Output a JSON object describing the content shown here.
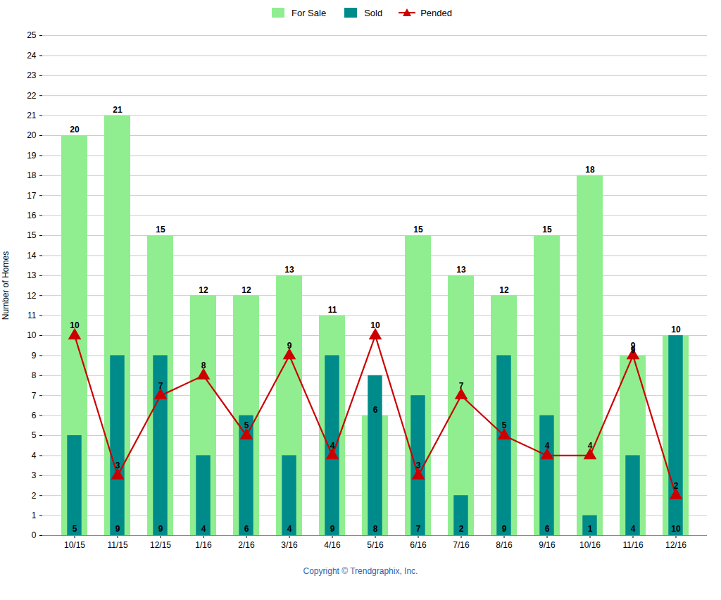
{
  "chart_data": {
    "type": "bar",
    "categories": [
      "10/15",
      "11/15",
      "12/15",
      "1/16",
      "2/16",
      "3/16",
      "4/16",
      "5/16",
      "6/16",
      "7/16",
      "8/16",
      "9/16",
      "10/16",
      "11/16",
      "12/16"
    ],
    "series": [
      {
        "name": "For Sale",
        "color": "#90EE90",
        "values": [
          20,
          21,
          15,
          12,
          12,
          13,
          11,
          6,
          15,
          13,
          12,
          15,
          18,
          9,
          10
        ]
      },
      {
        "name": "Sold",
        "color": "#008B8B",
        "values": [
          5,
          9,
          9,
          4,
          6,
          4,
          9,
          8,
          7,
          2,
          9,
          6,
          1,
          4,
          10
        ]
      },
      {
        "name": "Pended",
        "type": "line",
        "marker": "triangle",
        "color": "#CC0000",
        "values": [
          10,
          3,
          7,
          8,
          5,
          9,
          4,
          10,
          3,
          7,
          5,
          4,
          4,
          9,
          2
        ]
      }
    ],
    "ylabel": "Number of Homes",
    "caption": "Copyright © Trendgraphix, Inc.",
    "ylim": [
      0,
      25
    ],
    "yticks": [
      0,
      1,
      2,
      3,
      4,
      5,
      6,
      7,
      8,
      9,
      10,
      11,
      12,
      13,
      14,
      15,
      16,
      17,
      18,
      19,
      20,
      21,
      22,
      23,
      24,
      25
    ],
    "grid": true,
    "legend": "top",
    "data_labels": true
  }
}
